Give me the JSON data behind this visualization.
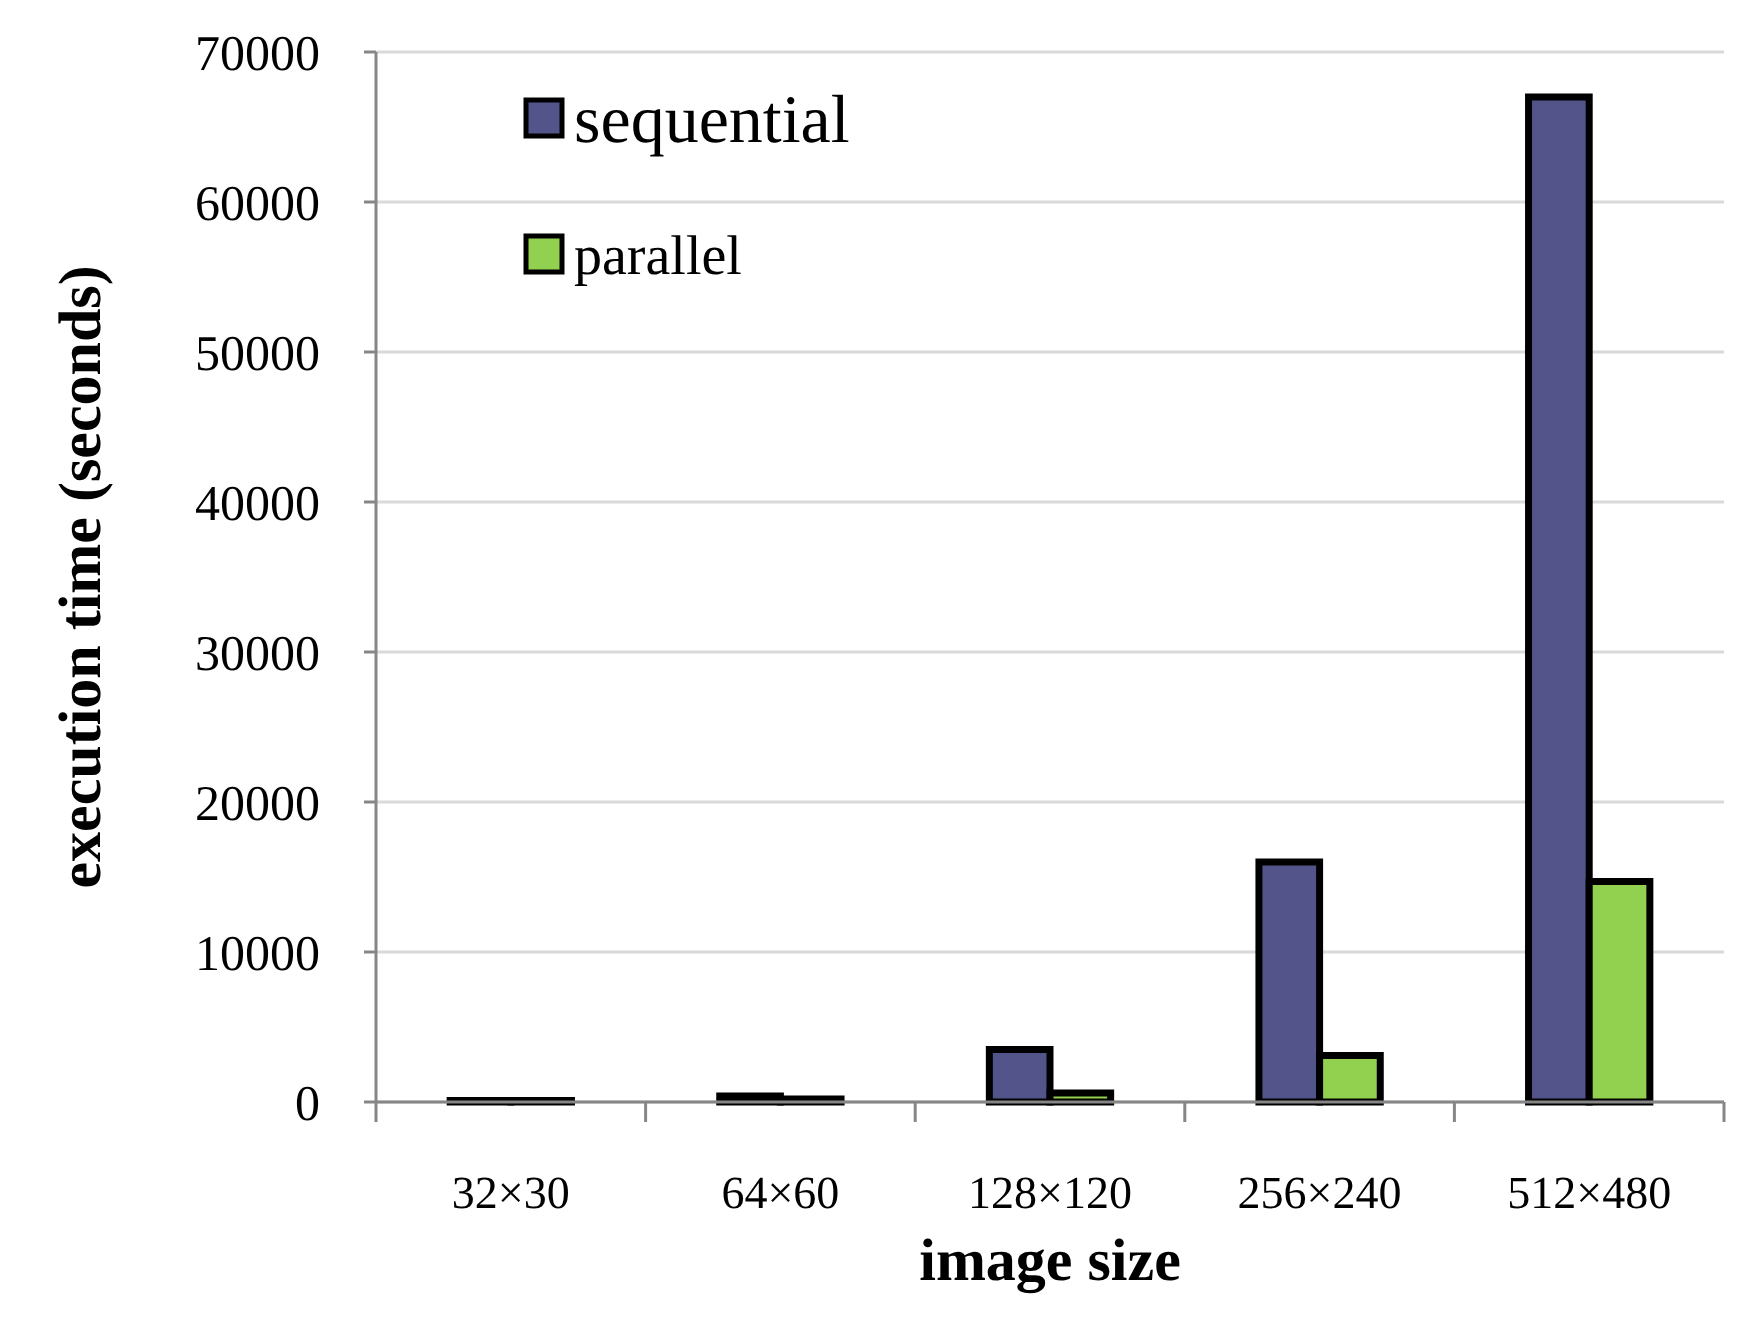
{
  "chart_data": {
    "type": "bar",
    "xlabel": "image size",
    "ylabel": "execution time (seconds)",
    "categories": [
      "32×30",
      "64×60",
      "128×120",
      "256×240",
      "512×480"
    ],
    "series": [
      {
        "name": "sequential",
        "color": "#53548a",
        "values": [
          100,
          400,
          3500,
          16000,
          67000
        ]
      },
      {
        "name": "parallel",
        "color": "#92d050",
        "values": [
          100,
          200,
          600,
          3100,
          14700
        ]
      }
    ],
    "ylim": [
      0,
      70000
    ],
    "yticks": [
      0,
      10000,
      20000,
      30000,
      40000,
      50000,
      60000,
      70000
    ],
    "grid": "y",
    "legend": "top left"
  }
}
